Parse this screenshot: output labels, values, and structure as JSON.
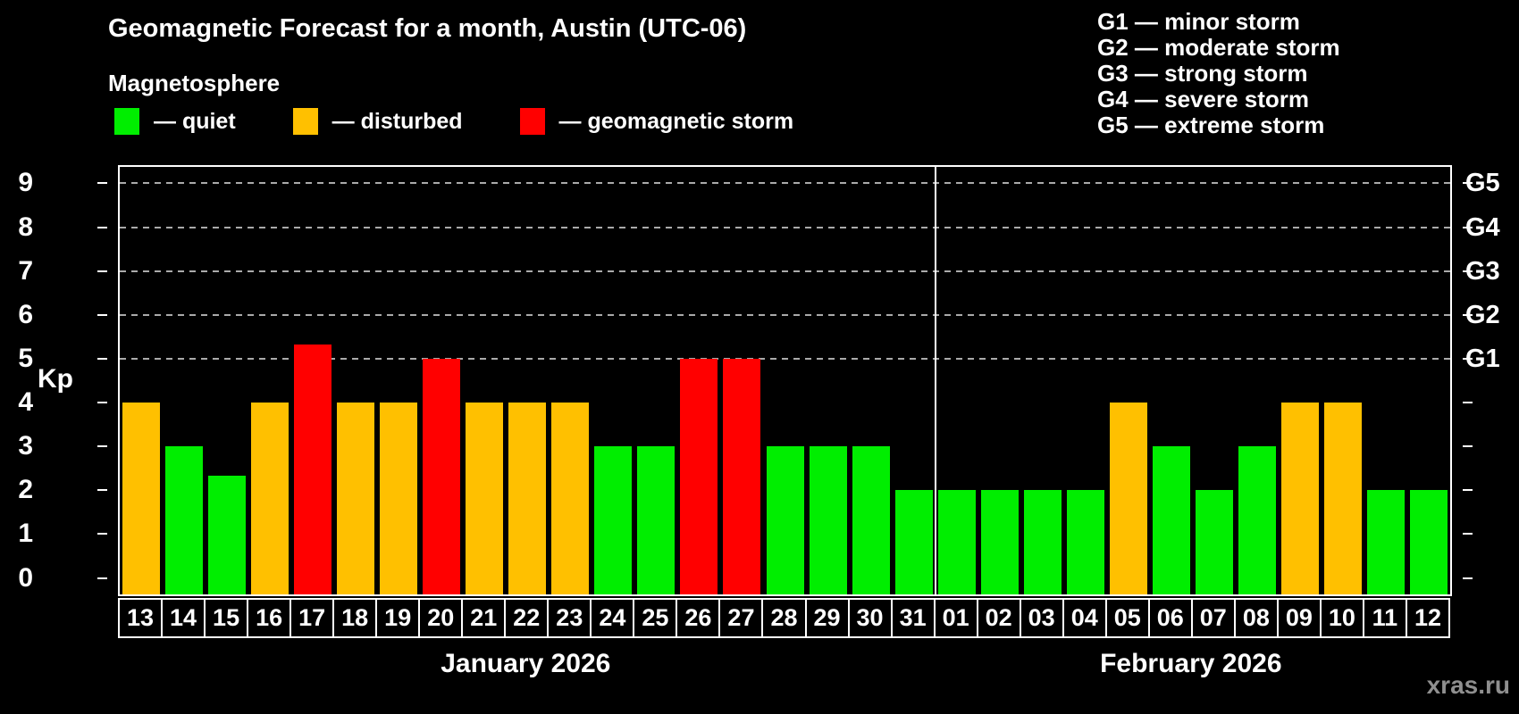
{
  "title": "Geomagnetic Forecast for a month, Austin (UTC-06)",
  "subtitle": "Magnetosphere",
  "legend": {
    "items": [
      {
        "key": "quiet",
        "label": "— quiet",
        "color": "#00EE00"
      },
      {
        "key": "disturbed",
        "label": "— disturbed",
        "color": "#FFC000"
      },
      {
        "key": "storm",
        "label": "— geomagnetic storm",
        "color": "#FF0000"
      }
    ]
  },
  "storm_scale": [
    "G1 — minor storm",
    "G2 — moderate storm",
    "G3 — strong storm",
    "G4 — severe storm",
    "G5 — extreme storm"
  ],
  "watermark": "xras.ru",
  "colors": {
    "background": "#000000",
    "axis": "#FFFFFF",
    "gridline": "#AAAAAA",
    "text": "#FFFFFF",
    "watermark": "#8F8F8F",
    "quiet": "#00EE00",
    "disturbed": "#FFC000",
    "storm": "#FF0000"
  },
  "chart_data": {
    "type": "bar",
    "ylabel": "Kp",
    "ylim": [
      -0.375,
      9.375
    ],
    "yticks": [
      0,
      1,
      2,
      3,
      4,
      5,
      6,
      7,
      8,
      9
    ],
    "gridlines_at": [
      5,
      6,
      7,
      8,
      9
    ],
    "grid": "dashed horizontal lines at storm levels Kp 5-9 only",
    "legend_position": "top-left",
    "right_axis": [
      {
        "value": 5,
        "label": "G1"
      },
      {
        "value": 6,
        "label": "G2"
      },
      {
        "value": 7,
        "label": "G3"
      },
      {
        "value": 8,
        "label": "G4"
      },
      {
        "value": 9,
        "label": "G5"
      }
    ],
    "months": [
      {
        "label": "January 2026",
        "days": 19
      },
      {
        "label": "February 2026",
        "days": 12
      }
    ],
    "bars": [
      {
        "day": "13",
        "value": 4,
        "status": "disturbed"
      },
      {
        "day": "14",
        "value": 3,
        "status": "quiet"
      },
      {
        "day": "15",
        "value": 2.33,
        "status": "quiet"
      },
      {
        "day": "16",
        "value": 4,
        "status": "disturbed"
      },
      {
        "day": "17",
        "value": 5.33,
        "status": "storm"
      },
      {
        "day": "18",
        "value": 4,
        "status": "disturbed"
      },
      {
        "day": "19",
        "value": 4,
        "status": "disturbed"
      },
      {
        "day": "20",
        "value": 5,
        "status": "storm"
      },
      {
        "day": "21",
        "value": 4,
        "status": "disturbed"
      },
      {
        "day": "22",
        "value": 4,
        "status": "disturbed"
      },
      {
        "day": "23",
        "value": 4,
        "status": "disturbed"
      },
      {
        "day": "24",
        "value": 3,
        "status": "quiet"
      },
      {
        "day": "25",
        "value": 3,
        "status": "quiet"
      },
      {
        "day": "26",
        "value": 5,
        "status": "storm"
      },
      {
        "day": "27",
        "value": 5,
        "status": "storm"
      },
      {
        "day": "28",
        "value": 3,
        "status": "quiet"
      },
      {
        "day": "29",
        "value": 3,
        "status": "quiet"
      },
      {
        "day": "30",
        "value": 3,
        "status": "quiet"
      },
      {
        "day": "31",
        "value": 2,
        "status": "quiet"
      },
      {
        "day": "01",
        "value": 2,
        "status": "quiet"
      },
      {
        "day": "02",
        "value": 2,
        "status": "quiet"
      },
      {
        "day": "03",
        "value": 2,
        "status": "quiet"
      },
      {
        "day": "04",
        "value": 2,
        "status": "quiet"
      },
      {
        "day": "05",
        "value": 4,
        "status": "disturbed"
      },
      {
        "day": "06",
        "value": 3,
        "status": "quiet"
      },
      {
        "day": "07",
        "value": 2,
        "status": "quiet"
      },
      {
        "day": "08",
        "value": 3,
        "status": "quiet"
      },
      {
        "day": "09",
        "value": 4,
        "status": "disturbed"
      },
      {
        "day": "10",
        "value": 4,
        "status": "disturbed"
      },
      {
        "day": "11",
        "value": 2,
        "status": "quiet"
      },
      {
        "day": "12",
        "value": 2,
        "status": "quiet"
      }
    ]
  }
}
